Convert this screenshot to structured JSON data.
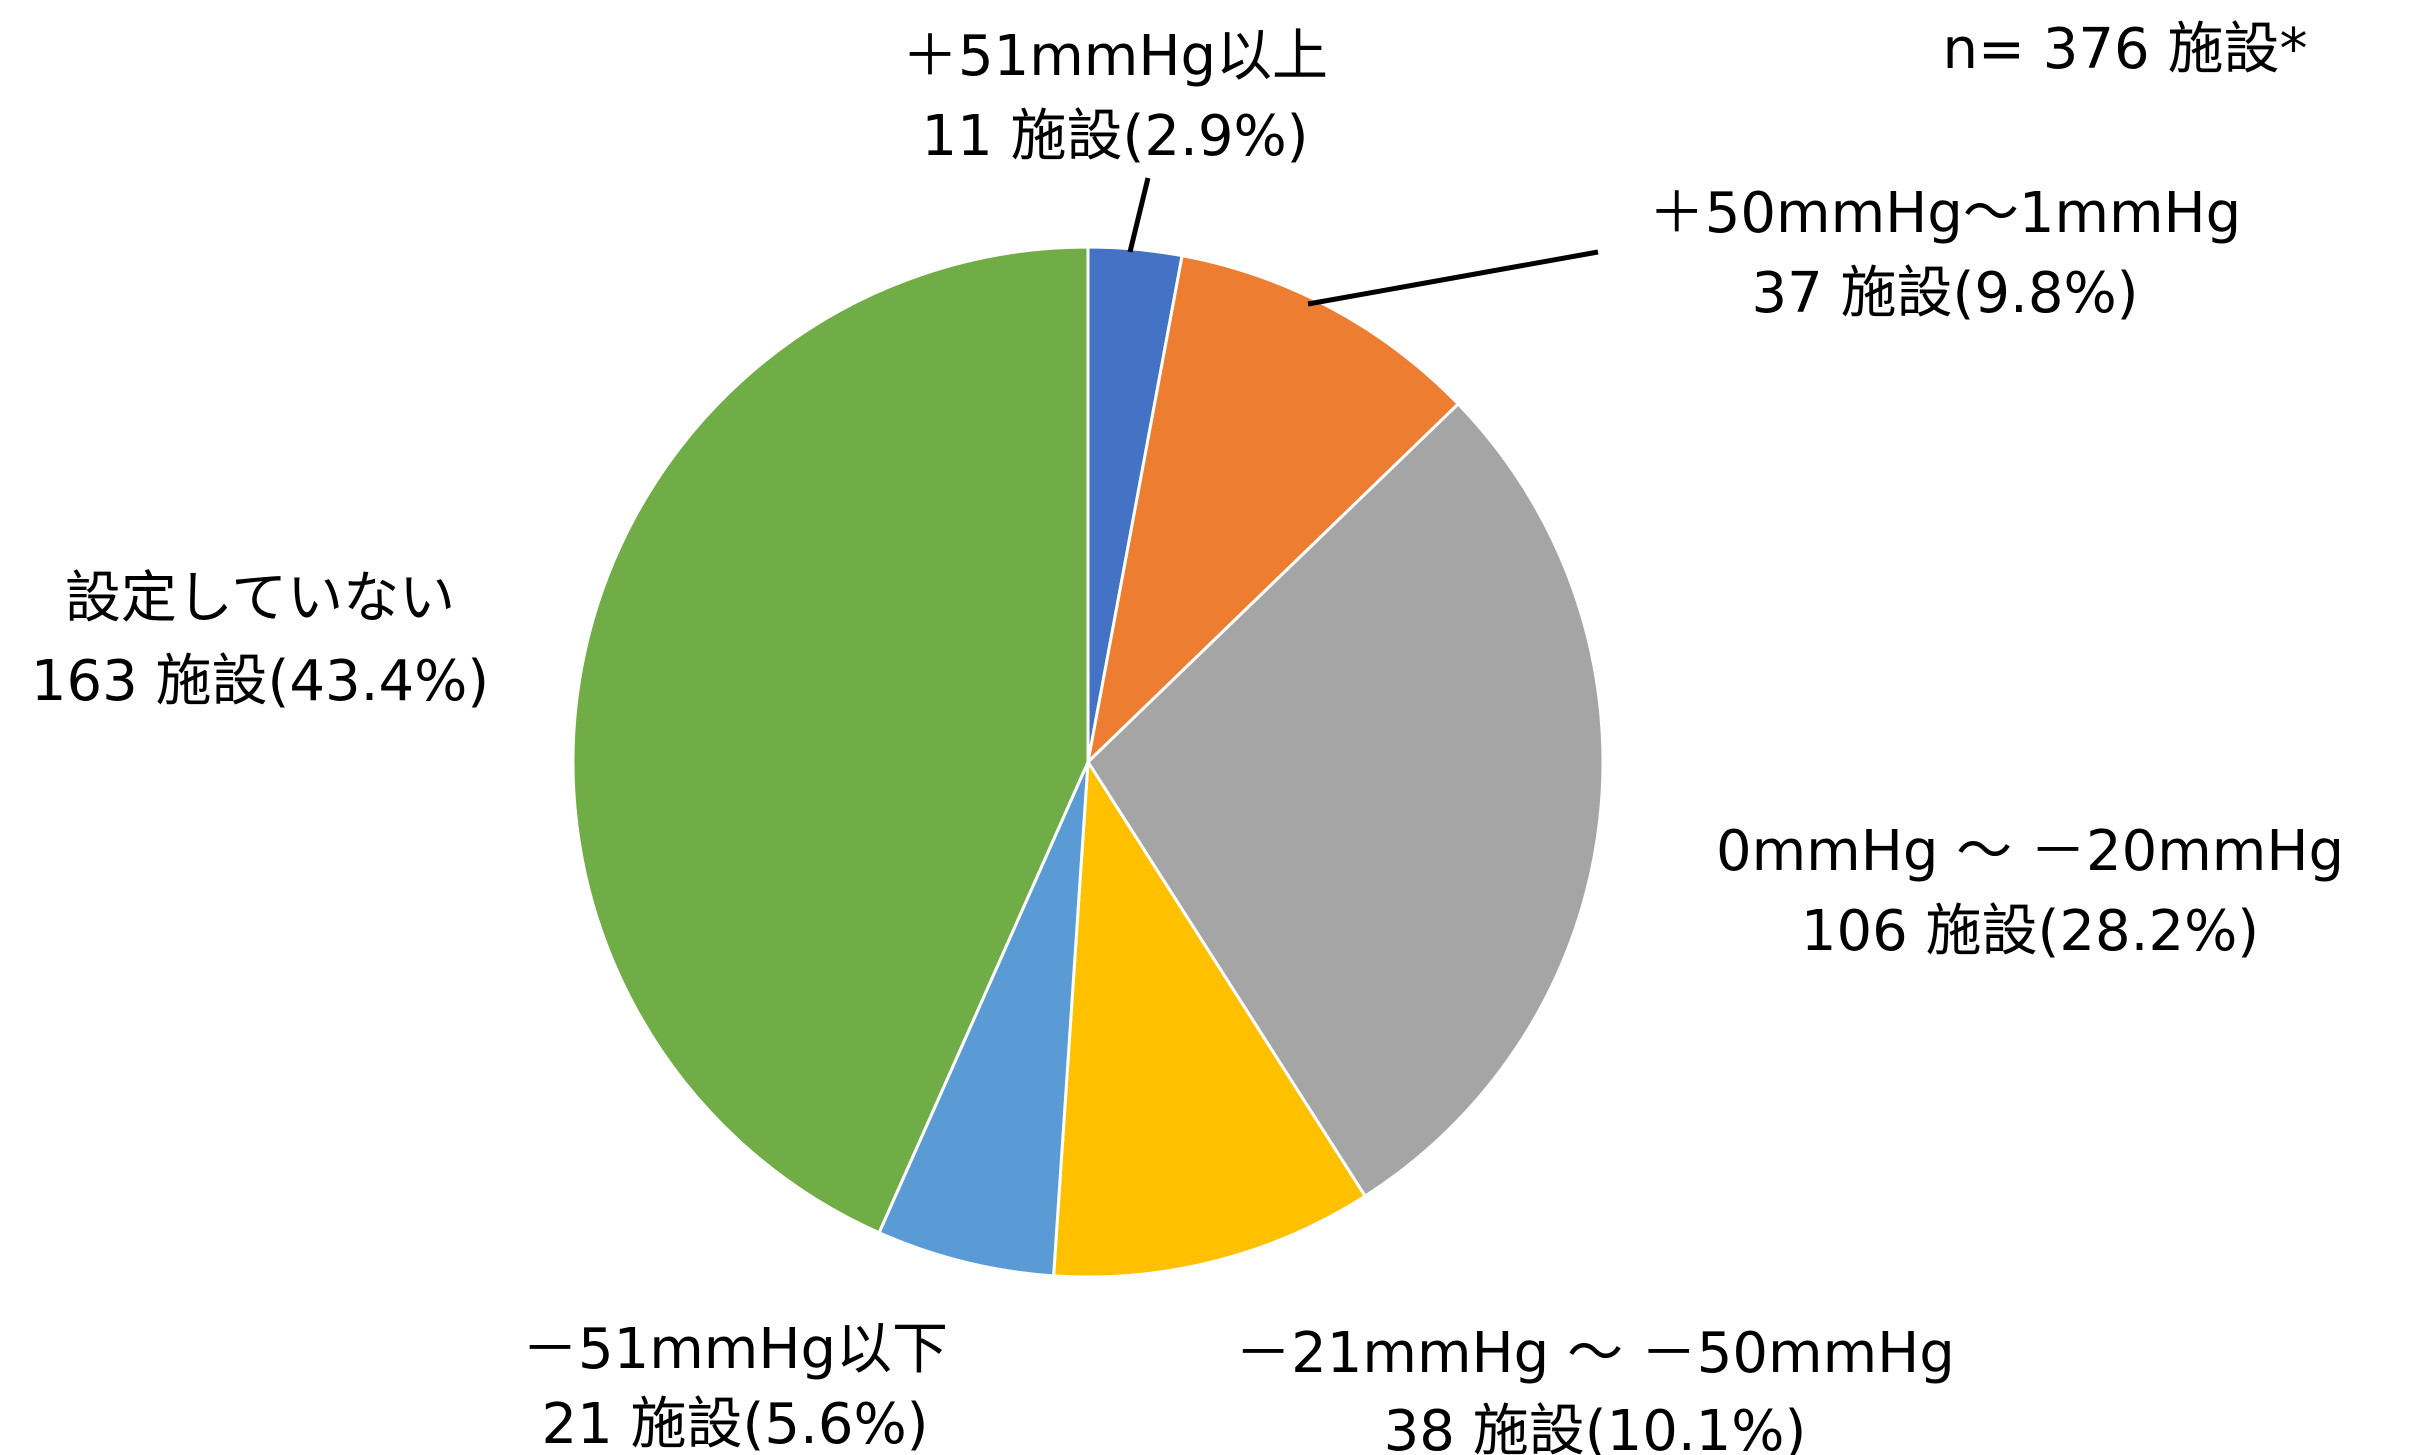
{
  "chart_data": {
    "type": "pie",
    "total_note": "n= 376 施設*",
    "slices": [
      {
        "name": "＋51mmHg以上",
        "value": 11,
        "count_label": "11 施設(2.9%)",
        "percent": 2.9,
        "color": "#4472C4"
      },
      {
        "name": "＋50mmHg～1mmHg",
        "value": 37,
        "count_label": "37 施設(9.8%)",
        "percent": 9.8,
        "color": "#ED7D31"
      },
      {
        "name": "0mmHg ～ －20mmHg",
        "value": 106,
        "count_label": "106 施設(28.2%)",
        "percent": 28.2,
        "color": "#A5A5A5"
      },
      {
        "name": "－21mmHg ～ －50mmHg",
        "value": 38,
        "count_label": "38 施設(10.1%)",
        "percent": 10.1,
        "color": "#FFC000"
      },
      {
        "name": "－51mmHg以下",
        "value": 21,
        "count_label": "21 施設(5.6%)",
        "percent": 5.6,
        "color": "#5B9BD5"
      },
      {
        "name": "設定していない",
        "value": 163,
        "count_label": "163 施設(43.4%)",
        "percent": 43.4,
        "color": "#70AD47"
      }
    ]
  }
}
